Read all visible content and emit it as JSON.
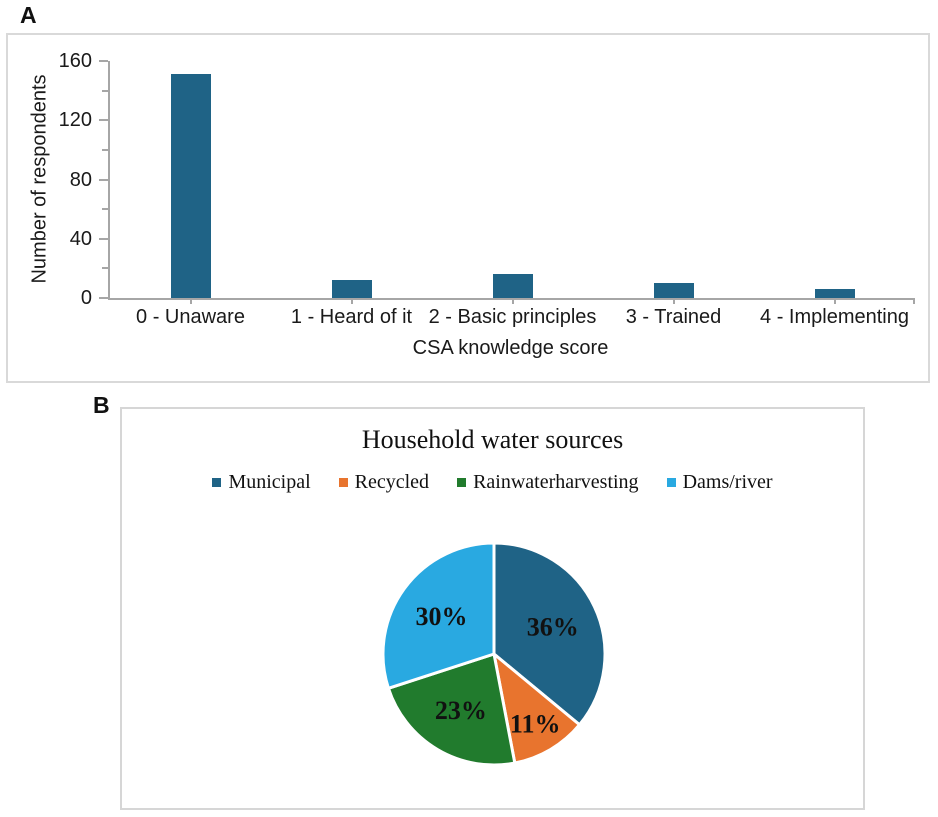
{
  "panel_a": {
    "label": "A"
  },
  "panel_b": {
    "label": "B"
  },
  "colors": {
    "axis": "#a6a6a6",
    "panel_border": "#d9d9d9",
    "bar": "#1f6386",
    "text": "#1a1a1a"
  },
  "chart_data": [
    {
      "type": "bar",
      "panel": "A",
      "categories": [
        "0 - Unaware",
        "1 - Heard of it",
        "2 - Basic principles",
        "3 - Trained",
        "4 - Implementing"
      ],
      "values": [
        151,
        12,
        16,
        10,
        6
      ],
      "xlabel": "CSA knowledge score",
      "ylabel": "Number of respondents",
      "ylim": [
        0,
        160
      ],
      "yticks": [
        0,
        40,
        80,
        120,
        160
      ],
      "yticks_minor": [
        20,
        60,
        100,
        140
      ],
      "bar_color": "#1f6386",
      "grid": false,
      "legend": "none"
    },
    {
      "type": "pie",
      "panel": "B",
      "title": "Household water sources",
      "labels": [
        "Municipal",
        "Recycled",
        "Rainwaterharvesting",
        "Dams/river"
      ],
      "values": [
        36,
        11,
        23,
        30
      ],
      "value_labels": [
        "36%",
        "11%",
        "23%",
        "30%"
      ],
      "colors": [
        "#1f6386",
        "#e8742e",
        "#217b2d",
        "#29a9e1"
      ],
      "start_angle_deg": 0,
      "direction": "clockwise",
      "legend_position": "top"
    }
  ]
}
